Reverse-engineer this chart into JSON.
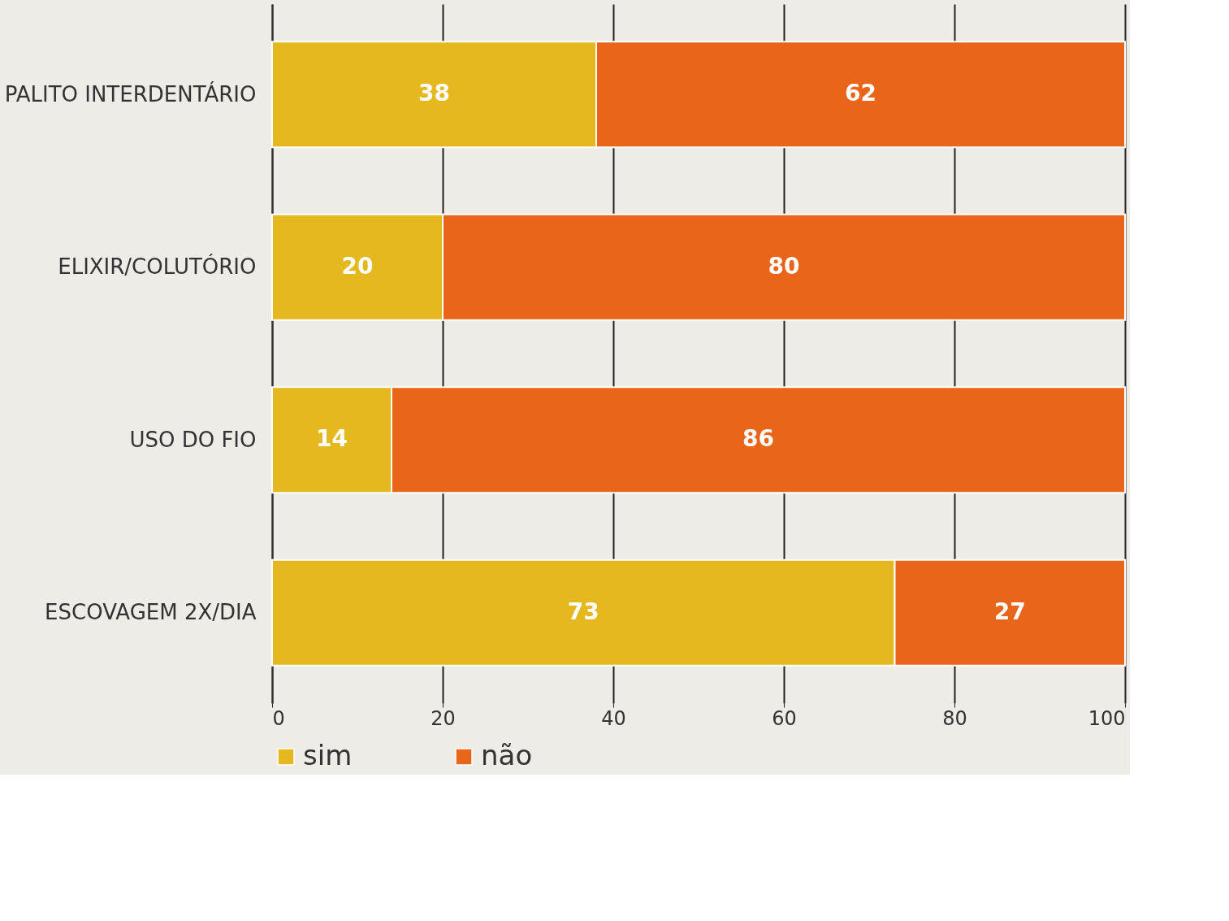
{
  "chart_data": {
    "type": "bar",
    "orientation": "horizontal",
    "stacked": true,
    "data_labels": true,
    "categories": [
      "PALITO INTERDENTÁRIO",
      "ELIXIR/COLUTÓRIO",
      "USO DO FIO",
      "ESCOVAGEM 2X/DIA"
    ],
    "series": [
      {
        "name": "sim",
        "color": "#e6b820",
        "values": [
          38,
          20,
          14,
          73
        ]
      },
      {
        "name": "não",
        "color": "#e8651a",
        "values": [
          62,
          80,
          86,
          27
        ]
      }
    ],
    "xlim": [
      0,
      100
    ],
    "xticks": [
      0,
      20,
      40,
      60,
      80,
      100
    ],
    "grid": "x",
    "legend": "bottom"
  }
}
